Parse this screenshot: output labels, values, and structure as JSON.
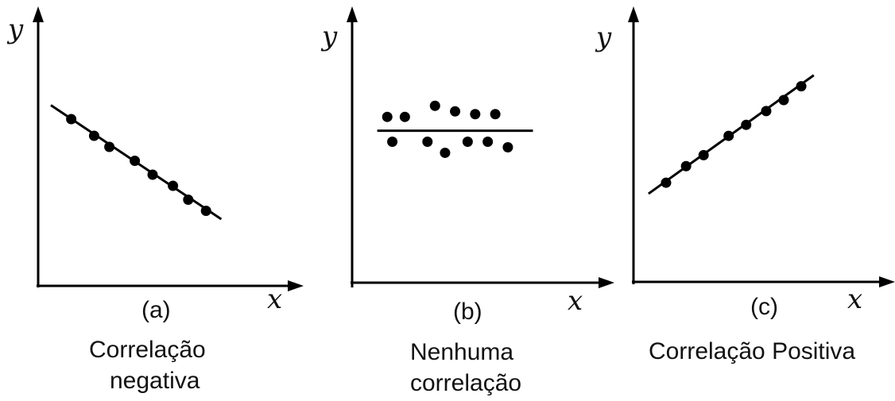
{
  "chart_data": [
    {
      "type": "scatter",
      "panel_label": "(a)",
      "caption_lines": [
        "Correlação",
        "negativa"
      ],
      "xlabel": "x",
      "ylabel": "y",
      "xlim": [
        0,
        10
      ],
      "ylim": [
        0,
        10
      ],
      "grid": false,
      "points": [
        {
          "x": 1.3,
          "y": 6.0
        },
        {
          "x": 2.2,
          "y": 5.4
        },
        {
          "x": 2.8,
          "y": 5.0
        },
        {
          "x": 3.8,
          "y": 4.5
        },
        {
          "x": 4.5,
          "y": 4.0
        },
        {
          "x": 5.3,
          "y": 3.6
        },
        {
          "x": 5.9,
          "y": 3.1
        },
        {
          "x": 6.6,
          "y": 2.7
        }
      ],
      "trend_line": {
        "x": [
          0.5,
          7.2
        ],
        "y": [
          6.5,
          2.4
        ]
      }
    },
    {
      "type": "scatter",
      "panel_label": "(b)",
      "caption_lines": [
        "Nenhuma",
        "correlação"
      ],
      "xlabel": "x",
      "ylabel": "y",
      "xlim": [
        0,
        10
      ],
      "ylim": [
        0,
        10
      ],
      "grid": false,
      "points": [
        {
          "x": 1.4,
          "y": 6.0
        },
        {
          "x": 2.1,
          "y": 6.0
        },
        {
          "x": 3.3,
          "y": 6.4
        },
        {
          "x": 4.1,
          "y": 6.2
        },
        {
          "x": 4.9,
          "y": 6.1
        },
        {
          "x": 5.7,
          "y": 6.1
        },
        {
          "x": 1.6,
          "y": 5.1
        },
        {
          "x": 3.0,
          "y": 5.1
        },
        {
          "x": 3.7,
          "y": 4.7
        },
        {
          "x": 4.6,
          "y": 5.1
        },
        {
          "x": 5.4,
          "y": 5.1
        },
        {
          "x": 6.2,
          "y": 4.9
        }
      ],
      "trend_line": {
        "x": [
          1.0,
          7.2
        ],
        "y": [
          5.5,
          5.5
        ]
      }
    },
    {
      "type": "scatter",
      "panel_label": "(c)",
      "caption_lines": [
        "Correlação Positiva"
      ],
      "xlabel": "x",
      "ylabel": "y",
      "xlim": [
        0,
        10
      ],
      "ylim": [
        0,
        10
      ],
      "grid": false,
      "points": [
        {
          "x": 1.3,
          "y": 3.6
        },
        {
          "x": 2.1,
          "y": 4.2
        },
        {
          "x": 2.8,
          "y": 4.6
        },
        {
          "x": 3.8,
          "y": 5.3
        },
        {
          "x": 4.5,
          "y": 5.7
        },
        {
          "x": 5.3,
          "y": 6.2
        },
        {
          "x": 6.0,
          "y": 6.6
        },
        {
          "x": 6.7,
          "y": 7.1
        }
      ],
      "trend_line": {
        "x": [
          0.6,
          7.2
        ],
        "y": [
          3.2,
          7.5
        ]
      }
    }
  ]
}
